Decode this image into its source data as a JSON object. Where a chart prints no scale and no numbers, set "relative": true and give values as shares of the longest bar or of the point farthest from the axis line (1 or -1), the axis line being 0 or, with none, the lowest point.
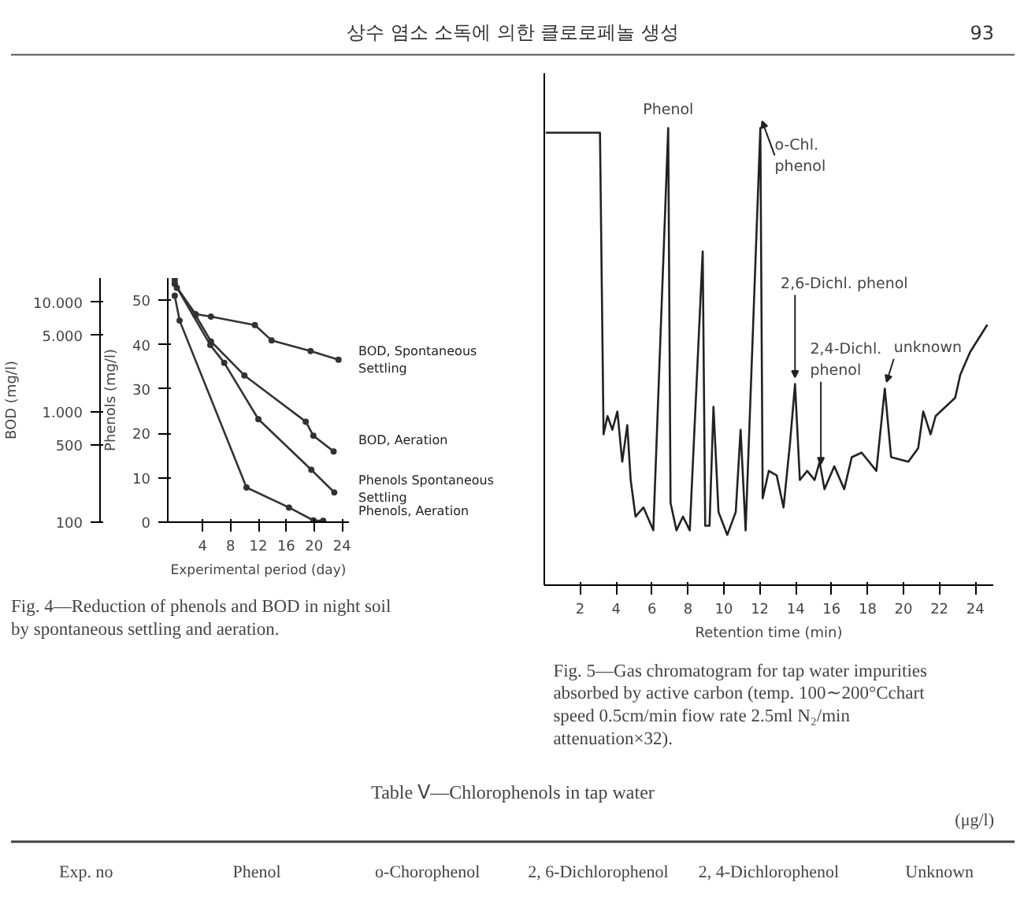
{
  "chart_data": [
    {
      "type": "line",
      "title": "Fig. 4—Reduction of phenols and BOD in night soil by spontaneous settling and aeration.",
      "xlabel": "Experimental period (day)",
      "ylabel": "Phenols (mg/l)",
      "y2label": "BOD (mg/l)",
      "xlim": [
        -1,
        25
      ],
      "xticks": [
        4,
        8,
        12,
        16,
        20,
        24
      ],
      "ylim": [
        0,
        55
      ],
      "yticks": [
        0,
        10,
        20,
        30,
        40,
        50
      ],
      "y2lim": [
        100,
        16600
      ],
      "y2ticks": [
        100,
        500,
        {
          "value": 1000,
          "label": "1.000"
        },
        {
          "value": 5000,
          "label": "5.000"
        },
        {
          "value": 10000,
          "label": "10.000"
        }
      ],
      "log": "y2",
      "marker": "circle",
      "grid": false,
      "annotations": [
        "상수 염소 소독에 의한 클로로페놀 생성",
        "93"
      ],
      "series": [
        {
          "name": "BOD, Spontaneous Settling",
          "color": "#333333",
          "axis": "y2",
          "x": [
            0,
            0.3,
            3,
            5.2,
            11.5,
            13.9,
            19.5,
            23.5
          ],
          "values": [
            16000,
            13500,
            7800,
            7400,
            6200,
            4500,
            3600,
            3000
          ]
        },
        {
          "name": "BOD, Aeration",
          "color": "#333333",
          "axis": "y2",
          "x": [
            0,
            3,
            5.2,
            10,
            18.8,
            19.9,
            22.8
          ],
          "values": [
            14700,
            7600,
            4400,
            2160,
            820,
            610,
            440
          ]
        },
        {
          "name": "Phenols Spontaneous Settling",
          "color": "#333333",
          "x": [
            0,
            5.1,
            7.1,
            12,
            19.6,
            22.9
          ],
          "values": [
            53.7,
            39.9,
            35.9,
            23.2,
            11.8,
            6.7
          ]
        },
        {
          "name": "Phenols, Aeration",
          "color": "#333333",
          "x": [
            0,
            0.7,
            10.3,
            16.4,
            19.9,
            21.3
          ],
          "values": [
            51,
            45.4,
            7.8,
            3.3,
            0.4,
            0.3
          ]
        }
      ]
    },
    {
      "type": "line",
      "relative": true,
      "title": "Fig. 5—Gas chromatogram for tap water impurities absorbed by active carbon (temp. 100∼200°Cchart speed 0.5cm/min fiow rate 2.5ml N₂/min attenuation×32).",
      "xlabel": "Retention time (min)",
      "xlim": [
        0,
        25
      ],
      "xticks": [
        2,
        4,
        6,
        8,
        10,
        12,
        14,
        16,
        18,
        20,
        22,
        24
      ],
      "grid": false,
      "color": "#222222",
      "x": [
        0.08,
        3.1,
        3.3,
        3.52,
        3.79,
        4.07,
        4.34,
        4.62,
        4.81,
        5.08,
        5.52,
        6.07,
        6.9,
        7.03,
        7.36,
        7.72,
        8.1,
        8.82,
        8.96,
        9.2,
        9.42,
        9.7,
        10.19,
        10.66,
        10.93,
        11.21,
        12.03,
        12.16,
        12.5,
        12.94,
        13.32,
        13.68,
        13.96,
        14.23,
        14.64,
        15.05,
        15.33,
        15.6,
        16.15,
        16.7,
        17.12,
        17.67,
        18.49,
        18.96,
        19.31,
        20.27,
        20.82,
        21.1,
        21.51,
        21.79,
        22.88,
        23.16,
        23.71,
        24.67
      ],
      "values": [
        0.99,
        0.99,
        0.33,
        0.37,
        0.34,
        0.38,
        0.27,
        0.35,
        0.23,
        0.15,
        0.17,
        0.12,
        1.0,
        0.18,
        0.12,
        0.15,
        0.12,
        0.73,
        0.13,
        0.13,
        0.39,
        0.16,
        0.11,
        0.16,
        0.34,
        0.12,
        1.0,
        0.19,
        0.25,
        0.24,
        0.17,
        0.31,
        0.44,
        0.23,
        0.25,
        0.23,
        0.27,
        0.21,
        0.26,
        0.21,
        0.28,
        0.29,
        0.25,
        0.43,
        0.28,
        0.27,
        0.3,
        0.38,
        0.33,
        0.37,
        0.41,
        0.46,
        0.51,
        0.57
      ],
      "annotations": [
        {
          "text": "Phenol",
          "x": 6.9,
          "y": 1.0
        },
        {
          "text": "o-Chl. phenol",
          "x": 12.03,
          "y": 1.0
        },
        {
          "text": "2,6-Dichl. phenol",
          "x": 13.96,
          "y": 0.44
        },
        {
          "text": "2,4-Dichl. phenol",
          "x": 15.4,
          "y": 0.25
        },
        {
          "text": "unknown",
          "x": 18.96,
          "y": 0.43
        },
        "Table Ⅴ—Chlorophenols in tap water",
        "(μg/l)",
        "Exp. no",
        "Phenol",
        "o-Chorophenol",
        "2, 6-Dichlorophenol",
        "2, 4-Dichlorophenol",
        "Unknown"
      ]
    }
  ]
}
